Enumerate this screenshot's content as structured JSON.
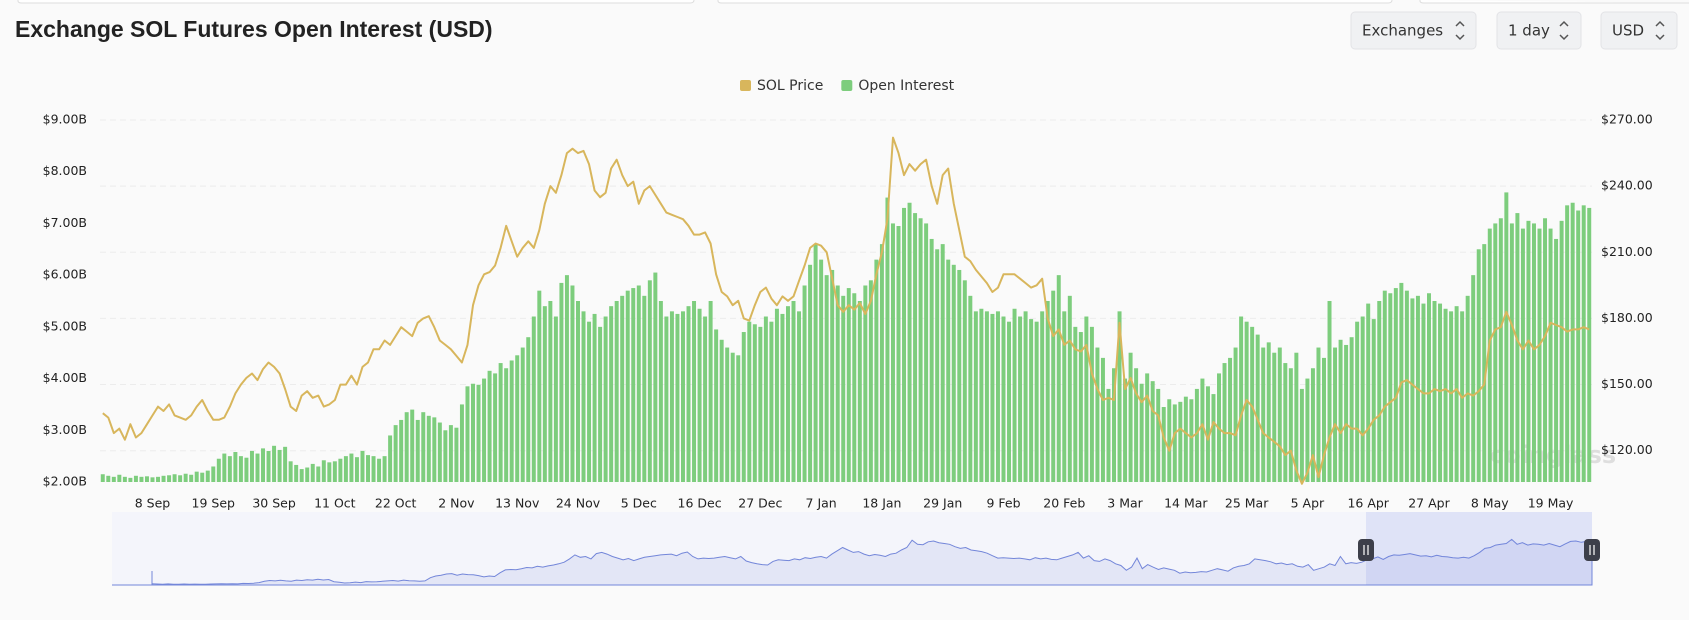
{
  "header": {
    "title": "Exchange SOL Futures Open Interest (USD)",
    "controls": [
      "Exchanges",
      "1 day",
      "USD"
    ]
  },
  "watermark": "coinglass",
  "chart_data": {
    "type": "combo",
    "grid": true,
    "legend_position": "top",
    "ylim": [
      2,
      9
    ],
    "yticks": [
      {
        "value": 2,
        "label": "$2.00B"
      },
      {
        "value": 3,
        "label": "$3.00B"
      },
      {
        "value": 4,
        "label": "$4.00B"
      },
      {
        "value": 5,
        "label": "$5.00B"
      },
      {
        "value": 6,
        "label": "$6.00B"
      },
      {
        "value": 7,
        "label": "$7.00B"
      },
      {
        "value": 8,
        "label": "$8.00B"
      },
      {
        "value": 9,
        "label": "$9.00B"
      }
    ],
    "y2lim": [
      105.8,
      270
    ],
    "y2ticks": [
      {
        "value": 120,
        "label": "$120.00"
      },
      {
        "value": 150,
        "label": "$150.00"
      },
      {
        "value": 180,
        "label": "$180.00"
      },
      {
        "value": 210,
        "label": "$210.00"
      },
      {
        "value": 240,
        "label": "$240.00"
      },
      {
        "value": 270,
        "label": "$270.00"
      }
    ],
    "xlim": [
      -0.5,
      269.5
    ],
    "xticks": [
      {
        "value": 9,
        "label": "8 Sep"
      },
      {
        "value": 20,
        "label": "19 Sep"
      },
      {
        "value": 31,
        "label": "30 Sep"
      },
      {
        "value": 42,
        "label": "11 Oct"
      },
      {
        "value": 53,
        "label": "22 Oct"
      },
      {
        "value": 64,
        "label": "2 Nov"
      },
      {
        "value": 75,
        "label": "13 Nov"
      },
      {
        "value": 86,
        "label": "24 Nov"
      },
      {
        "value": 97,
        "label": "5 Dec"
      },
      {
        "value": 108,
        "label": "16 Dec"
      },
      {
        "value": 119,
        "label": "27 Dec"
      },
      {
        "value": 130,
        "label": "7 Jan"
      },
      {
        "value": 141,
        "label": "18 Jan"
      },
      {
        "value": 152,
        "label": "29 Jan"
      },
      {
        "value": 163,
        "label": "9 Feb"
      },
      {
        "value": 174,
        "label": "20 Feb"
      },
      {
        "value": 185,
        "label": "3 Mar"
      },
      {
        "value": 196,
        "label": "14 Mar"
      },
      {
        "value": 207,
        "label": "25 Mar"
      },
      {
        "value": 218,
        "label": "5 Apr"
      },
      {
        "value": 229,
        "label": "16 Apr"
      },
      {
        "value": 240,
        "label": "27 Apr"
      },
      {
        "value": 251,
        "label": "8 May"
      },
      {
        "value": 262,
        "label": "19 May"
      }
    ],
    "series": [
      {
        "name": "SOL Price",
        "type": "line",
        "axis": "y2",
        "color": "#d8b65c",
        "values": [
          137,
          135,
          128,
          130,
          125,
          132,
          126,
          128,
          132,
          136,
          140,
          138,
          141,
          136,
          135,
          134,
          136,
          140,
          143,
          138,
          134,
          134,
          135,
          140,
          146,
          150,
          153,
          155,
          152,
          157,
          160,
          158,
          155,
          148,
          140,
          138,
          145,
          147,
          144,
          145,
          140,
          141,
          143,
          150,
          150,
          154,
          150,
          158,
          160,
          166,
          166,
          170,
          168,
          172,
          176,
          174,
          172,
          178,
          180,
          181,
          176,
          170,
          168,
          166,
          163,
          160,
          168,
          186,
          195,
          200,
          201,
          204,
          212,
          222,
          215,
          208,
          212,
          215,
          212,
          220,
          232,
          240,
          237,
          245,
          255,
          257,
          255,
          256,
          250,
          238,
          235,
          237,
          248,
          252,
          245,
          240,
          242,
          232,
          238,
          240,
          236,
          232,
          228,
          227,
          226,
          225,
          222,
          218,
          218,
          219,
          214,
          200,
          192,
          190,
          186,
          188,
          180,
          179,
          186,
          192,
          194,
          189,
          186,
          190,
          188,
          190,
          197,
          204,
          212,
          214,
          213,
          210,
          198,
          186,
          183,
          186,
          184,
          187,
          182,
          188,
          200,
          210,
          225,
          262,
          255,
          245,
          250,
          247,
          250,
          252,
          240,
          232,
          245,
          248,
          232,
          220,
          208,
          206,
          202,
          199,
          196,
          192,
          194,
          200,
          200,
          200,
          198,
          196,
          194,
          195,
          198,
          180,
          172,
          175,
          168,
          170,
          166,
          165,
          168,
          155,
          148,
          143,
          144,
          143,
          178,
          148,
          153,
          146,
          142,
          145,
          138,
          136,
          126,
          120,
          128,
          130,
          128,
          126,
          128,
          132,
          125,
          133,
          130,
          128,
          128,
          127,
          136,
          143,
          140,
          134,
          128,
          126,
          124,
          122,
          118,
          120,
          111,
          105,
          110,
          118,
          108,
          118,
          126,
          132,
          128,
          132,
          130,
          130,
          127,
          130,
          134,
          136,
          140,
          142,
          144,
          151,
          152,
          150,
          148,
          146,
          146,
          148,
          147,
          148,
          146,
          148,
          144,
          146,
          145,
          147,
          150,
          170,
          175,
          176,
          183,
          177,
          170,
          166,
          170,
          166,
          168,
          172,
          178,
          177,
          176,
          174,
          175,
          175,
          176,
          175
        ]
      },
      {
        "name": "Open Interest",
        "type": "bar",
        "color": "#7dcd7d",
        "values": [
          2.15,
          2.12,
          2.1,
          2.14,
          2.1,
          2.08,
          2.12,
          2.1,
          2.11,
          2.09,
          2.1,
          2.12,
          2.13,
          2.15,
          2.13,
          2.16,
          2.14,
          2.2,
          2.18,
          2.22,
          2.3,
          2.45,
          2.55,
          2.5,
          2.58,
          2.5,
          2.47,
          2.6,
          2.55,
          2.65,
          2.6,
          2.7,
          2.62,
          2.68,
          2.4,
          2.33,
          2.25,
          2.28,
          2.35,
          2.3,
          2.42,
          2.38,
          2.4,
          2.45,
          2.5,
          2.55,
          2.48,
          2.6,
          2.52,
          2.5,
          2.45,
          2.5,
          2.9,
          3.1,
          3.2,
          3.35,
          3.4,
          3.2,
          3.35,
          3.28,
          3.25,
          3.15,
          3.0,
          3.1,
          3.05,
          3.5,
          3.85,
          3.9,
          3.88,
          4.0,
          4.15,
          4.1,
          4.3,
          4.2,
          4.35,
          4.45,
          4.6,
          4.8,
          5.2,
          5.7,
          5.4,
          5.5,
          5.2,
          5.85,
          6.0,
          5.8,
          5.5,
          5.3,
          5.1,
          5.25,
          5.0,
          5.2,
          5.4,
          5.5,
          5.6,
          5.7,
          5.75,
          5.8,
          5.6,
          5.9,
          6.05,
          5.5,
          5.2,
          5.3,
          5.25,
          5.3,
          5.4,
          5.5,
          5.35,
          5.2,
          5.5,
          4.95,
          4.75,
          4.6,
          4.5,
          4.45,
          4.9,
          5.1,
          5.05,
          5.0,
          5.2,
          5.1,
          5.35,
          5.25,
          5.4,
          5.5,
          5.3,
          5.8,
          6.2,
          6.6,
          6.3,
          6.0,
          6.1,
          5.8,
          5.6,
          5.75,
          5.65,
          5.5,
          5.8,
          5.9,
          6.3,
          6.6,
          7.5,
          7.0,
          6.95,
          7.3,
          7.4,
          7.2,
          7.1,
          7.0,
          6.7,
          6.5,
          6.6,
          6.3,
          6.2,
          6.1,
          5.9,
          5.6,
          5.3,
          5.35,
          5.3,
          5.25,
          5.3,
          5.2,
          5.1,
          5.35,
          5.2,
          5.3,
          5.15,
          5.1,
          5.3,
          5.5,
          5.7,
          6.0,
          5.3,
          5.6,
          5.0,
          4.9,
          5.2,
          5.0,
          4.6,
          4.4,
          3.8,
          4.2,
          5.3,
          4.0,
          4.5,
          4.2,
          3.9,
          4.1,
          3.95,
          3.8,
          3.45,
          3.6,
          3.5,
          3.55,
          3.65,
          3.6,
          3.8,
          4.0,
          3.85,
          3.7,
          4.1,
          4.3,
          4.4,
          4.6,
          5.2,
          5.1,
          5.0,
          4.85,
          4.6,
          4.7,
          4.5,
          4.6,
          4.3,
          4.2,
          4.5,
          3.8,
          4.0,
          4.2,
          4.6,
          4.4,
          5.5,
          4.6,
          4.75,
          4.65,
          4.8,
          5.1,
          5.2,
          5.45,
          5.15,
          5.5,
          5.7,
          5.65,
          5.75,
          5.85,
          5.7,
          5.55,
          5.6,
          5.45,
          5.65,
          5.5,
          5.45,
          5.35,
          5.3,
          5.4,
          5.3,
          5.6,
          6.0,
          6.5,
          6.6,
          6.9,
          7.0,
          7.1,
          7.6,
          7.0,
          7.2,
          6.9,
          7.05,
          7.0,
          6.9,
          7.1,
          6.9,
          6.7,
          7.05,
          7.35,
          7.4,
          7.25,
          7.35,
          7.3
        ]
      }
    ]
  }
}
